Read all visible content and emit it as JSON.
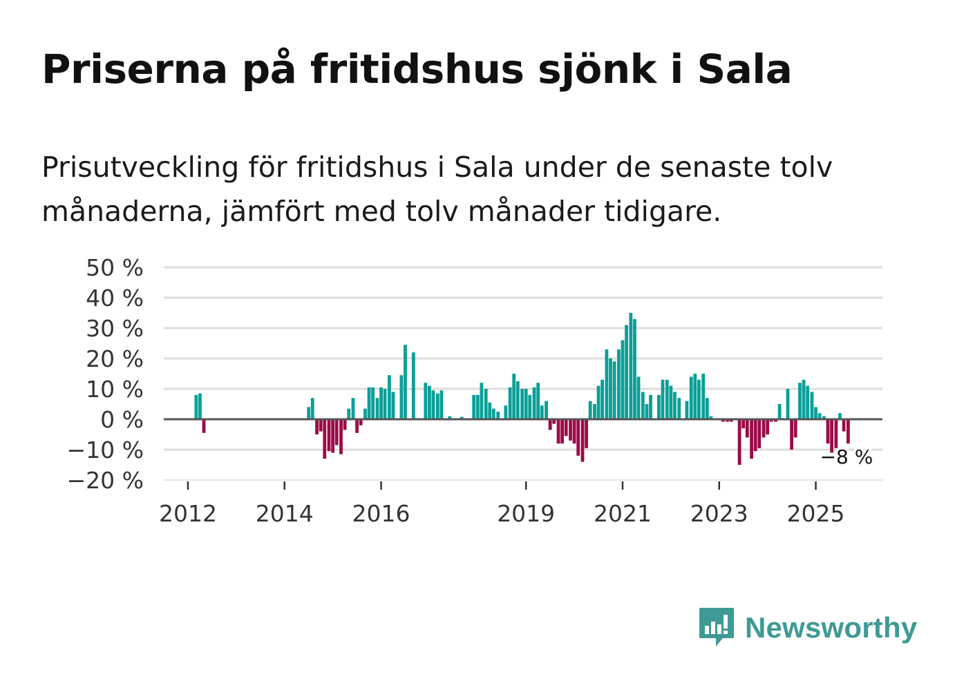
{
  "title": "Priserna på fritidshus sjönk i Sala",
  "subtitle": "Prisutveckling för fritidshus i Sala under de senaste tolv månaderna, jämfört med tolv månader tidigare.",
  "logo": {
    "text": "Newsworthy",
    "icon": "newsworthy-chart-icon"
  },
  "colors": {
    "positive": "#0a9f97",
    "negative": "#9b0b47",
    "grid": "#dddddd",
    "zero": "#555555",
    "brand": "#3e9a94"
  },
  "chart_data": {
    "type": "bar",
    "title": "",
    "xlabel": "",
    "ylabel": "",
    "ylim": [
      -20,
      50
    ],
    "yticks": [
      50,
      40,
      30,
      20,
      10,
      0,
      -10,
      -20
    ],
    "ytick_labels": [
      "50 %",
      "40 %",
      "30 %",
      "20 %",
      "10 %",
      "0 %",
      "−10 %",
      "−20 %"
    ],
    "xticks": [
      {
        "label": "2012",
        "x": 2012.0
      },
      {
        "label": "2014",
        "x": 2014.0
      },
      {
        "label": "2016",
        "x": 2016.0
      },
      {
        "label": "2019",
        "x": 2019.0
      },
      {
        "label": "2021",
        "x": 2021.0
      },
      {
        "label": "2023",
        "x": 2023.0
      },
      {
        "label": "2025",
        "x": 2025.0
      }
    ],
    "x_start": 2011.5,
    "x_end": 2026.38,
    "last_value_label": "−8 %",
    "bars": [
      {
        "x": 2012.17,
        "value": 8
      },
      {
        "x": 2012.25,
        "value": 8.5
      },
      {
        "x": 2012.33,
        "value": -4.5
      },
      {
        "x": 2014.5,
        "value": 4
      },
      {
        "x": 2014.58,
        "value": 7
      },
      {
        "x": 2014.67,
        "value": -5
      },
      {
        "x": 2014.75,
        "value": -4
      },
      {
        "x": 2014.83,
        "value": -13
      },
      {
        "x": 2014.92,
        "value": -10.5
      },
      {
        "x": 2015.0,
        "value": -11
      },
      {
        "x": 2015.08,
        "value": -8.5
      },
      {
        "x": 2015.17,
        "value": -11.5
      },
      {
        "x": 2015.25,
        "value": -3.5
      },
      {
        "x": 2015.33,
        "value": 3.5
      },
      {
        "x": 2015.42,
        "value": 7
      },
      {
        "x": 2015.5,
        "value": -4.5
      },
      {
        "x": 2015.58,
        "value": -2
      },
      {
        "x": 2015.67,
        "value": 3.5
      },
      {
        "x": 2015.75,
        "value": 10.5
      },
      {
        "x": 2015.83,
        "value": 10.5
      },
      {
        "x": 2015.92,
        "value": 7
      },
      {
        "x": 2016.0,
        "value": 10.5
      },
      {
        "x": 2016.08,
        "value": 10
      },
      {
        "x": 2016.17,
        "value": 14.5
      },
      {
        "x": 2016.25,
        "value": 9
      },
      {
        "x": 2016.42,
        "value": 14.5
      },
      {
        "x": 2016.5,
        "value": 24.5
      },
      {
        "x": 2016.67,
        "value": 22
      },
      {
        "x": 2016.92,
        "value": 12
      },
      {
        "x": 2017.0,
        "value": 11
      },
      {
        "x": 2017.08,
        "value": 9.5
      },
      {
        "x": 2017.17,
        "value": 8.5
      },
      {
        "x": 2017.25,
        "value": 9.5
      },
      {
        "x": 2017.42,
        "value": 1
      },
      {
        "x": 2017.67,
        "value": 0.8
      },
      {
        "x": 2017.92,
        "value": 8
      },
      {
        "x": 2018.0,
        "value": 8
      },
      {
        "x": 2018.08,
        "value": 12
      },
      {
        "x": 2018.17,
        "value": 10
      },
      {
        "x": 2018.25,
        "value": 5.5
      },
      {
        "x": 2018.33,
        "value": 3.5
      },
      {
        "x": 2018.42,
        "value": 2.5
      },
      {
        "x": 2018.58,
        "value": 4.5
      },
      {
        "x": 2018.67,
        "value": 10.5
      },
      {
        "x": 2018.75,
        "value": 15
      },
      {
        "x": 2018.83,
        "value": 12.5
      },
      {
        "x": 2018.92,
        "value": 10
      },
      {
        "x": 2019.0,
        "value": 10
      },
      {
        "x": 2019.08,
        "value": 8
      },
      {
        "x": 2019.17,
        "value": 10.5
      },
      {
        "x": 2019.25,
        "value": 12
      },
      {
        "x": 2019.33,
        "value": 4.5
      },
      {
        "x": 2019.42,
        "value": 6
      },
      {
        "x": 2019.5,
        "value": -3.5
      },
      {
        "x": 2019.58,
        "value": -1.5
      },
      {
        "x": 2019.67,
        "value": -8
      },
      {
        "x": 2019.75,
        "value": -8
      },
      {
        "x": 2019.83,
        "value": -5.5
      },
      {
        "x": 2019.92,
        "value": -7
      },
      {
        "x": 2020.0,
        "value": -8
      },
      {
        "x": 2020.08,
        "value": -12
      },
      {
        "x": 2020.17,
        "value": -14
      },
      {
        "x": 2020.25,
        "value": -9.5
      },
      {
        "x": 2020.33,
        "value": 6
      },
      {
        "x": 2020.42,
        "value": 5
      },
      {
        "x": 2020.5,
        "value": 11
      },
      {
        "x": 2020.58,
        "value": 13
      },
      {
        "x": 2020.67,
        "value": 23
      },
      {
        "x": 2020.75,
        "value": 20
      },
      {
        "x": 2020.83,
        "value": 19
      },
      {
        "x": 2020.92,
        "value": 23
      },
      {
        "x": 2021.0,
        "value": 26
      },
      {
        "x": 2021.08,
        "value": 31
      },
      {
        "x": 2021.17,
        "value": 35
      },
      {
        "x": 2021.25,
        "value": 33
      },
      {
        "x": 2021.33,
        "value": 14
      },
      {
        "x": 2021.42,
        "value": 9
      },
      {
        "x": 2021.5,
        "value": 5
      },
      {
        "x": 2021.58,
        "value": 8
      },
      {
        "x": 2021.75,
        "value": 8
      },
      {
        "x": 2021.83,
        "value": 13
      },
      {
        "x": 2021.92,
        "value": 13
      },
      {
        "x": 2022.0,
        "value": 11
      },
      {
        "x": 2022.08,
        "value": 9
      },
      {
        "x": 2022.17,
        "value": 7
      },
      {
        "x": 2022.33,
        "value": 6
      },
      {
        "x": 2022.42,
        "value": 14
      },
      {
        "x": 2022.5,
        "value": 15
      },
      {
        "x": 2022.58,
        "value": 13
      },
      {
        "x": 2022.67,
        "value": 15
      },
      {
        "x": 2022.75,
        "value": 7
      },
      {
        "x": 2022.83,
        "value": 1
      },
      {
        "x": 2023.08,
        "value": -0.8
      },
      {
        "x": 2023.17,
        "value": -0.8
      },
      {
        "x": 2023.25,
        "value": -0.8
      },
      {
        "x": 2023.42,
        "value": -15
      },
      {
        "x": 2023.5,
        "value": -3
      },
      {
        "x": 2023.58,
        "value": -6
      },
      {
        "x": 2023.67,
        "value": -13
      },
      {
        "x": 2023.75,
        "value": -10.5
      },
      {
        "x": 2023.83,
        "value": -9.5
      },
      {
        "x": 2023.92,
        "value": -6
      },
      {
        "x": 2024.0,
        "value": -5
      },
      {
        "x": 2024.08,
        "value": -0.8
      },
      {
        "x": 2024.17,
        "value": -0.8
      },
      {
        "x": 2024.25,
        "value": 5
      },
      {
        "x": 2024.42,
        "value": 10
      },
      {
        "x": 2024.5,
        "value": -10
      },
      {
        "x": 2024.58,
        "value": -6
      },
      {
        "x": 2024.67,
        "value": 12
      },
      {
        "x": 2024.75,
        "value": 13
      },
      {
        "x": 2024.83,
        "value": 11
      },
      {
        "x": 2024.92,
        "value": 9
      },
      {
        "x": 2025.0,
        "value": 4
      },
      {
        "x": 2025.08,
        "value": 2
      },
      {
        "x": 2025.17,
        "value": 1
      },
      {
        "x": 2025.25,
        "value": -8
      },
      {
        "x": 2025.33,
        "value": -11
      },
      {
        "x": 2025.42,
        "value": -9.5
      },
      {
        "x": 2025.5,
        "value": 2
      },
      {
        "x": 2025.58,
        "value": -4
      },
      {
        "x": 2025.67,
        "value": -8
      }
    ]
  }
}
